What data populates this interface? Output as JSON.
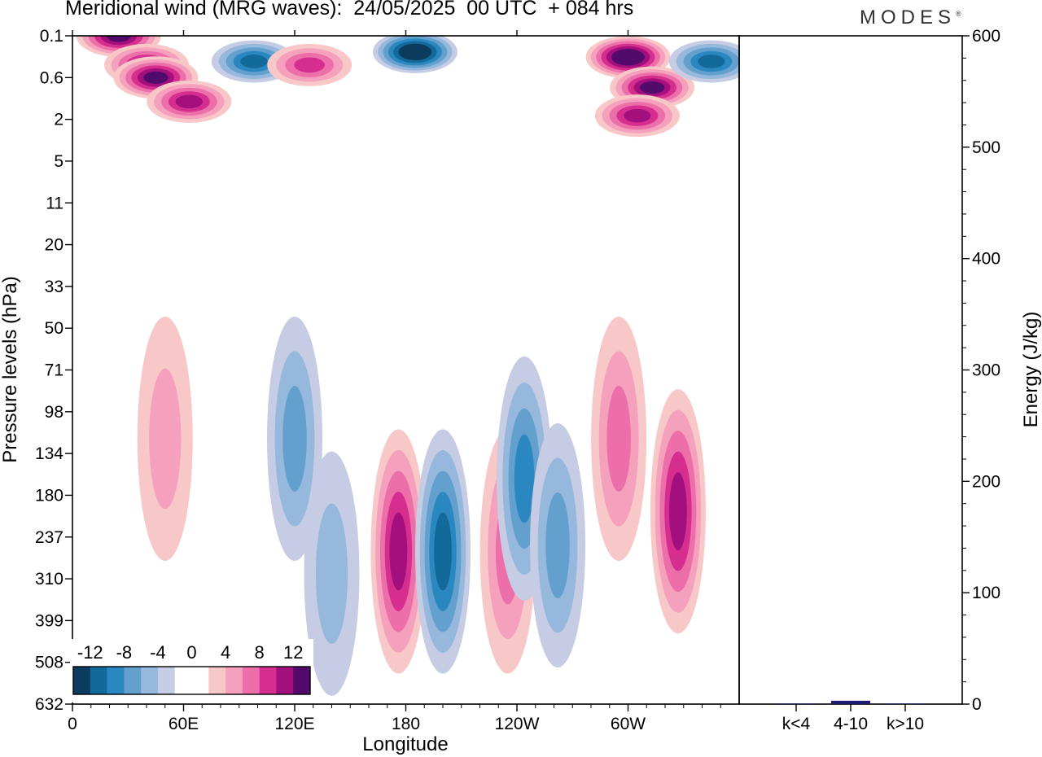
{
  "title": "Meridional wind (MRG waves):  24/05/2025  00 UTC  + 084 hrs",
  "logo": "MODES",
  "chart_data": [
    {
      "type": "heatmap",
      "title": "Meridional wind (MRG waves):  24/05/2025  00 UTC  + 084 hrs",
      "xlabel": "Longitude",
      "ylabel": "Pressure levels (hPa)",
      "xticks": [
        "0",
        "60E",
        "120E",
        "180",
        "120W",
        "60W"
      ],
      "xlim": [
        0,
        360
      ],
      "yticks": [
        "0.1",
        "0.6",
        "2",
        "5",
        "11",
        "20",
        "33",
        "50",
        "71",
        "98",
        "134",
        "180",
        "237",
        "310",
        "399",
        "508",
        "632"
      ],
      "colorbar": {
        "tick_labels": [
          "-12",
          "-8",
          "-4",
          "0",
          "4",
          "8",
          "12"
        ],
        "levels": [
          -14,
          -12,
          -10,
          -8,
          -6,
          -4,
          -2,
          0,
          2,
          4,
          6,
          8,
          10,
          12,
          14
        ],
        "colors": [
          "#0b3c5d",
          "#126a9a",
          "#2b87c0",
          "#63a0cd",
          "#95b8dc",
          "#c6cce3",
          "#ffffff",
          "#ffffff",
          "#f8c7c8",
          "#f5a0bd",
          "#ec6faa",
          "#d62e8f",
          "#a3107d",
          "#520a6b"
        ]
      },
      "features": [
        {
          "lon": 25,
          "level": "0.1",
          "value": 12
        },
        {
          "lon": 40,
          "level": "0.35",
          "value": 11
        },
        {
          "lon": 45,
          "level": "0.6",
          "value": 13
        },
        {
          "lon": 98,
          "level": "0.3",
          "value": -10
        },
        {
          "lon": 128,
          "level": "0.35",
          "value": 9
        },
        {
          "lon": 185,
          "level": "0.2",
          "value": -14
        },
        {
          "lon": 300,
          "level": "0.25",
          "value": 14
        },
        {
          "lon": 313,
          "level": "0.8",
          "value": 12
        },
        {
          "lon": 345,
          "level": "0.3",
          "value": -10
        },
        {
          "lon": 63,
          "level": "1.2",
          "value": 10
        },
        {
          "lon": 305,
          "level": "1.8",
          "value": 10
        },
        {
          "lon": 176,
          "level": "260",
          "value": 11
        },
        {
          "lon": 200,
          "level": "260",
          "value": -10
        },
        {
          "lon": 235,
          "level": "260",
          "value": 7
        },
        {
          "lon": 244,
          "level": "160",
          "value": -8
        },
        {
          "lon": 327,
          "level": "200",
          "value": 10
        },
        {
          "lon": 262,
          "level": "250",
          "value": -7
        },
        {
          "lon": 120,
          "level": "120",
          "value": -6
        },
        {
          "lon": 295,
          "level": "120",
          "value": 6
        },
        {
          "lon": 140,
          "level": "300",
          "value": -5
        },
        {
          "lon": 50,
          "level": "120",
          "value": 4
        }
      ]
    },
    {
      "type": "bar",
      "ylabel": "Energy (J/kg)",
      "ylim": [
        0,
        600
      ],
      "yticks": [
        "0",
        "100",
        "200",
        "300",
        "400",
        "500",
        "600"
      ],
      "categories": [
        "k<4",
        "4-10",
        "k>10"
      ],
      "values": [
        0.5,
        3,
        0.5
      ],
      "bar_color": "#1a1a6e"
    }
  ]
}
